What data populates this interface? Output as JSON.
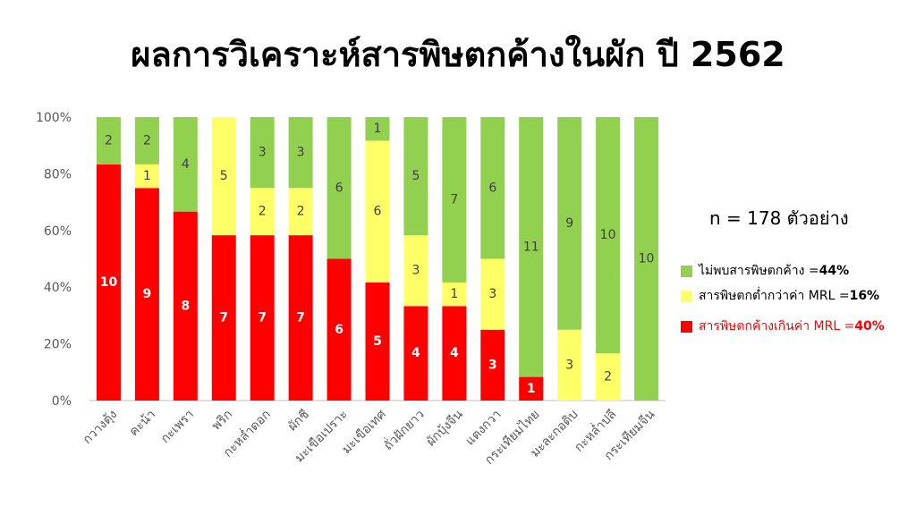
{
  "title": "ผลการวิเคราะห์สารพิษตกค้างในผัก ปี 2562",
  "sample_note": "n = 178 ตัวอย่าง",
  "colors": {
    "red": "#ff0000",
    "yellow": "#ffff66",
    "green": "#92d050",
    "axis": "#bfbfbf",
    "text": "#595959"
  },
  "legend": [
    {
      "key": "green",
      "text": "ไม่พบสารพิษตกค้าง = ",
      "value": "44%",
      "color": "#92d050",
      "text_color": "#000000"
    },
    {
      "key": "yellow",
      "text": "สารพิษตกต่ำกว่าค่า MRL = ",
      "value": "16%",
      "color": "#ffff66",
      "text_color": "#000000"
    },
    {
      "key": "red",
      "text": "สารพิษตกค้างเกินค่า MRL = ",
      "value": "40%",
      "color": "#ff0000",
      "text_color": "#ff0000"
    }
  ],
  "chart_data": {
    "type": "bar",
    "stacked": "percent",
    "categories": [
      "กวางตุ้ง",
      "คะน้า",
      "กะเพรา",
      "พริก",
      "กะหล่ำดอก",
      "ผักชี",
      "มะเขือเปราะ",
      "มะเขือเทศ",
      "ถั่วฝักยาว",
      "ผักบุ้งจีน",
      "แตงกวา",
      "กระเทียมไทย",
      "มะละกอดิบ",
      "กะหล่ำปลี",
      "กระเทียมจีน"
    ],
    "series": [
      {
        "key": "red",
        "color": "#ff0000",
        "values": [
          10,
          9,
          8,
          7,
          7,
          7,
          6,
          5,
          4,
          4,
          3,
          1,
          0,
          0,
          0
        ]
      },
      {
        "key": "yellow",
        "color": "#ffff66",
        "values": [
          0,
          1,
          0,
          5,
          2,
          2,
          0,
          6,
          3,
          1,
          3,
          0,
          3,
          2,
          0
        ]
      },
      {
        "key": "green",
        "color": "#92d050",
        "values": [
          2,
          2,
          4,
          0,
          3,
          3,
          6,
          1,
          5,
          7,
          6,
          11,
          9,
          10,
          10
        ]
      }
    ],
    "y_ticks": [
      "0%",
      "20%",
      "40%",
      "60%",
      "80%",
      "100%"
    ],
    "ylim": [
      0,
      100
    ],
    "legend_position": "right"
  }
}
